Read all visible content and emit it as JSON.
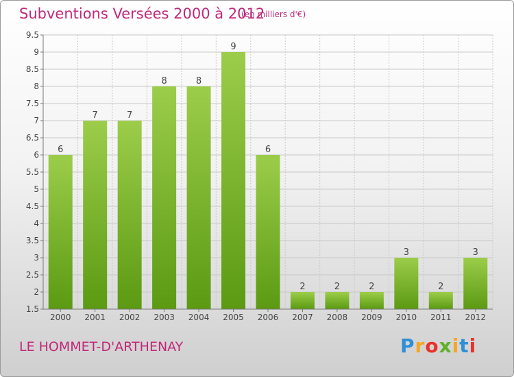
{
  "title": "Subventions Versées 2000 à 2012",
  "subtitle": "(en milliers d'€)",
  "commune": "LE HOMMET-D'ARTHENAY",
  "logo": {
    "text": "Proxiti",
    "letters": [
      "P",
      "r",
      "o",
      "x",
      "i",
      "t",
      "i"
    ]
  },
  "colors": {
    "bar_top": "#9ccd4a",
    "bar_bottom": "#5b9a12",
    "title": "#c0287a",
    "grid": "#c8c8c8"
  },
  "chart_data": {
    "type": "bar",
    "title": "Subventions Versées 2000 à 2012",
    "subtitle": "(en milliers d'€)",
    "categories": [
      "2000",
      "2001",
      "2002",
      "2003",
      "2004",
      "2005",
      "2006",
      "2007",
      "2008",
      "2009",
      "2010",
      "2011",
      "2012"
    ],
    "values": [
      6,
      7,
      7,
      8,
      8,
      9,
      6,
      2,
      2,
      2,
      3,
      2,
      3
    ],
    "ylim": [
      1.5,
      9.5
    ],
    "yticks": [
      1.5,
      2,
      2.5,
      3,
      3.5,
      4,
      4.5,
      5,
      5.5,
      6,
      6.5,
      7,
      7.5,
      8,
      8.5,
      9,
      9.5
    ],
    "ytick_labels": [
      "1.5",
      "2",
      "2.5",
      "3",
      "3.5",
      "4",
      "4.5",
      "5",
      "5.5",
      "6",
      "6.5",
      "7",
      "7.5",
      "8",
      "8.5",
      "9",
      "9.5"
    ],
    "grid": true,
    "data_labels": true
  }
}
